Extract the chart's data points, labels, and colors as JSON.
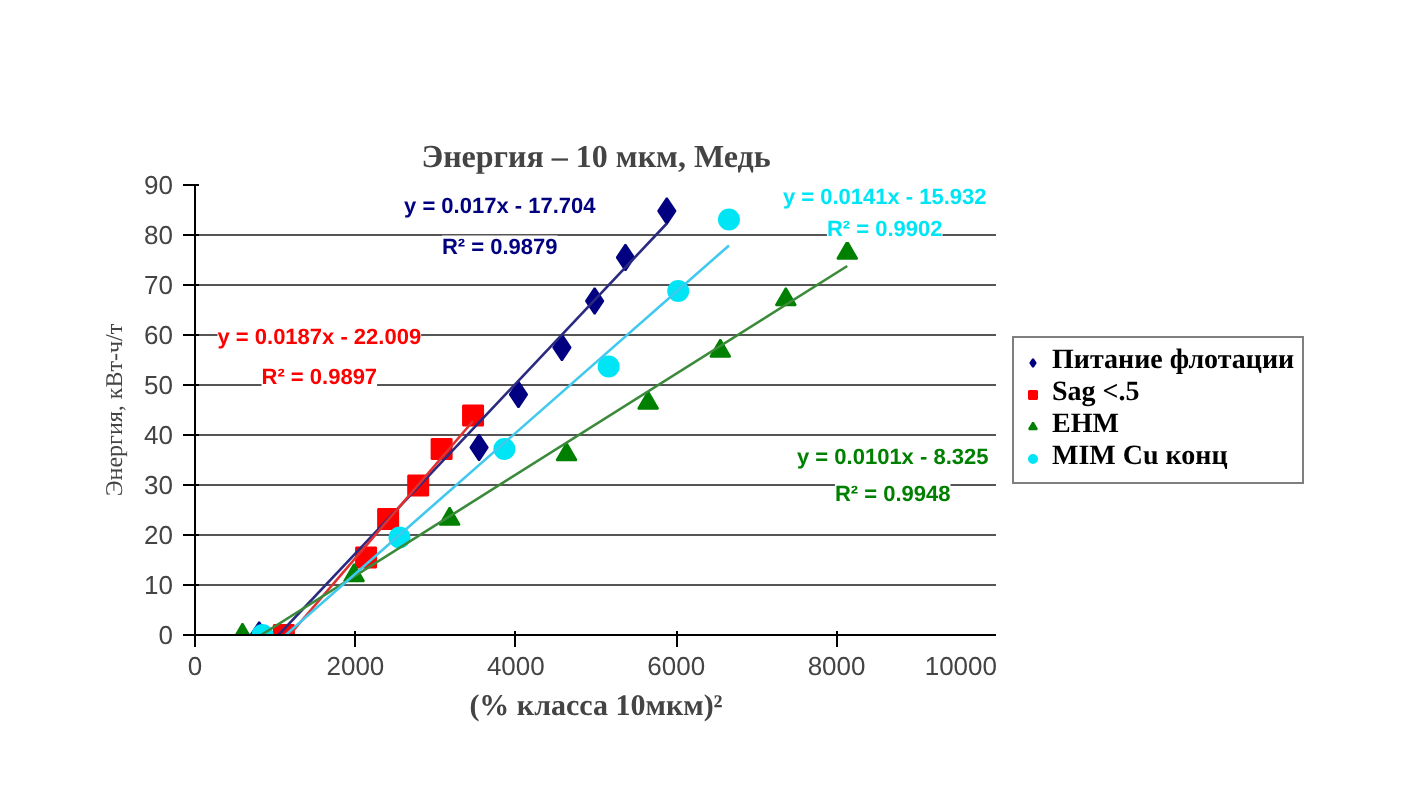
{
  "chart_data": {
    "type": "scatter",
    "title": "Энергия – 10 мкм, Медь",
    "xlabel": "(% класса 10мкм)²",
    "ylabel": "Энергия, кВт-ч/т",
    "xlim": [
      0,
      10000
    ],
    "xticks": [
      0,
      2000,
      4000,
      6000,
      8000,
      10000
    ],
    "ylim": [
      0,
      90
    ],
    "yticks": [
      0,
      10,
      20,
      30,
      40,
      50,
      60,
      70,
      80,
      90
    ],
    "grid": "y",
    "legend": "right",
    "series": [
      {
        "name": "Питание флотации",
        "color": "#000080",
        "marker": "diamond",
        "x": [
          800,
          3542,
          4033,
          4575,
          4983,
          5367,
          5883
        ],
        "values": [
          0,
          37.5,
          48.1,
          57.5,
          66.8,
          75.5,
          84.8
        ]
      },
      {
        "name": "Sag <.5",
        "color": "#ff0000",
        "marker": "square",
        "x": [
          1108,
          2133,
          2408,
          2783,
          3075,
          3467
        ],
        "values": [
          0,
          15.5,
          23.2,
          29.9,
          37.2,
          43.9
        ]
      },
      {
        "name": "EHM",
        "color": "#008000",
        "marker": "triangle",
        "x": [
          592,
          1983,
          3175,
          4633,
          5650,
          6550,
          7367,
          8133
        ],
        "values": [
          0,
          11.9,
          23.2,
          36.1,
          46.4,
          56.8,
          67.1,
          76.4
        ]
      },
      {
        "name": "MIM Cu конц",
        "color": "#00e5f5",
        "marker": "circle",
        "x": [
          842,
          2550,
          3858,
          5158,
          6025,
          6658
        ],
        "values": [
          0,
          19.5,
          37.2,
          53.7,
          68.8,
          83.1
        ]
      },
      {
        "type": "line",
        "color": "#2a2a80",
        "x": [
          1041,
          5883
        ],
        "values": [
          0,
          82.3
        ]
      },
      {
        "type": "line",
        "color": "#e03030",
        "x": [
          1177,
          3467
        ],
        "values": [
          0,
          42.8
        ]
      },
      {
        "type": "line",
        "color": "#3a8a3a",
        "x": [
          824,
          8133
        ],
        "values": [
          0,
          73.8
        ]
      },
      {
        "type": "line",
        "color": "#40c8ee",
        "x": [
          1130,
          6658
        ],
        "values": [
          0,
          77.9
        ]
      }
    ],
    "annotations": [
      "y = 0.017x - 17.704",
      "R² = 0.9879",
      "y = 0.0187x - 22.009",
      "R² = 0.9897",
      "y = 0.0101x - 8.325",
      "R² = 0.9948",
      "y = 0.0141x - 15.932",
      "R² = 0.9902"
    ]
  }
}
